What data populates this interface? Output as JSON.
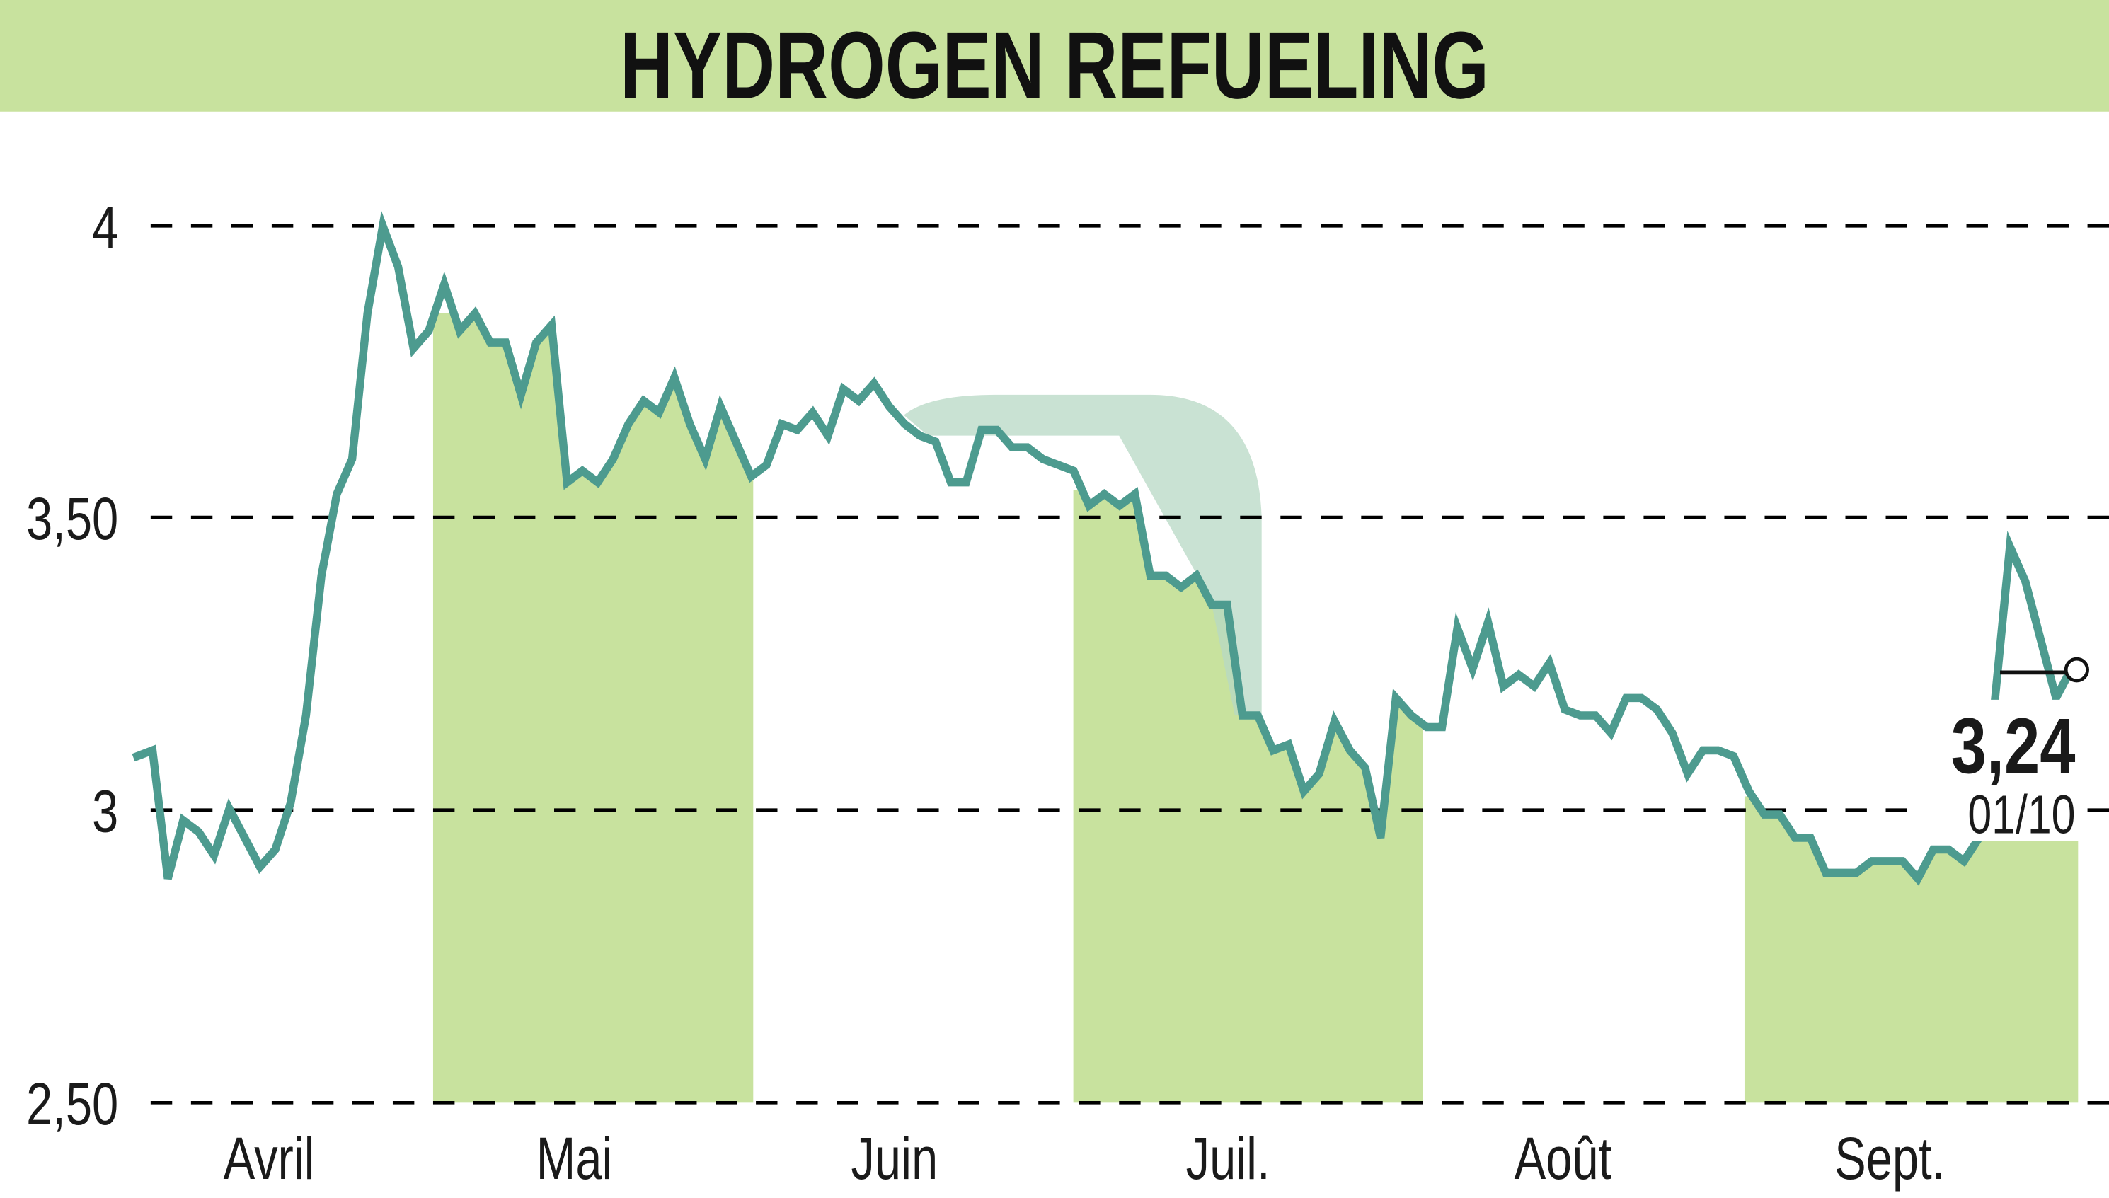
{
  "header": {
    "title": "HYDROGEN REFUELING",
    "band_color": "#c8e29e"
  },
  "colors": {
    "line": "#4d9b8f",
    "month_band": "#c8e29e",
    "highlight_band": "#c8e29e",
    "arrow_shape": "#b7d8c4",
    "grid": "#000000",
    "text": "#1a1a1a"
  },
  "last_value": {
    "price": "3,24",
    "date": "01/10"
  },
  "chart_data": {
    "type": "line",
    "title": "HYDROGEN REFUELING",
    "xlabel": "",
    "ylabel": "",
    "ylim": [
      2.5,
      4.0
    ],
    "y_ticks": [
      {
        "value": 4.0,
        "label": "4"
      },
      {
        "value": 3.5,
        "label": "3,50"
      },
      {
        "value": 3.0,
        "label": "3"
      },
      {
        "value": 2.5,
        "label": "2,50"
      }
    ],
    "grid": "horizontal dashed",
    "x_tick_labels": [
      "Avril",
      "Mai",
      "Juin",
      "Juil.",
      "Août",
      "Sept."
    ],
    "shaded_months": [
      "Mai",
      "Juil.",
      "Sept."
    ],
    "last_point": {
      "label": "01/10",
      "value": 3.24
    },
    "series": [
      {
        "name": "HYDROGEN REFUELING",
        "values": [
          3.09,
          3.1,
          2.88,
          2.98,
          2.96,
          2.92,
          3.0,
          2.95,
          2.9,
          2.93,
          3.01,
          3.16,
          3.4,
          3.54,
          3.6,
          3.85,
          4.0,
          3.93,
          3.79,
          3.82,
          3.9,
          3.82,
          3.85,
          3.8,
          3.8,
          3.71,
          3.8,
          3.83,
          3.56,
          3.58,
          3.56,
          3.6,
          3.66,
          3.7,
          3.68,
          3.74,
          3.66,
          3.6,
          3.69,
          3.63,
          3.57,
          3.59,
          3.66,
          3.65,
          3.68,
          3.64,
          3.72,
          3.7,
          3.73,
          3.69,
          3.66,
          3.64,
          3.63,
          3.56,
          3.56,
          3.65,
          3.65,
          3.62,
          3.62,
          3.6,
          3.59,
          3.58,
          3.52,
          3.54,
          3.52,
          3.54,
          3.4,
          3.4,
          3.38,
          3.4,
          3.35,
          3.35,
          3.16,
          3.16,
          3.1,
          3.11,
          3.03,
          3.06,
          3.15,
          3.1,
          3.07,
          2.95,
          3.19,
          3.16,
          3.14,
          3.14,
          3.31,
          3.24,
          3.32,
          3.21,
          3.23,
          3.21,
          3.25,
          3.17,
          3.16,
          3.16,
          3.13,
          3.19,
          3.19,
          3.17,
          3.13,
          3.06,
          3.1,
          3.1,
          3.09,
          3.03,
          2.99,
          2.99,
          2.95,
          2.95,
          2.89,
          2.89,
          2.89,
          2.91,
          2.91,
          2.91,
          2.88,
          2.93,
          2.93,
          2.91,
          2.95,
          3.18,
          3.45,
          3.39,
          3.29,
          3.19,
          3.24
        ]
      }
    ]
  }
}
